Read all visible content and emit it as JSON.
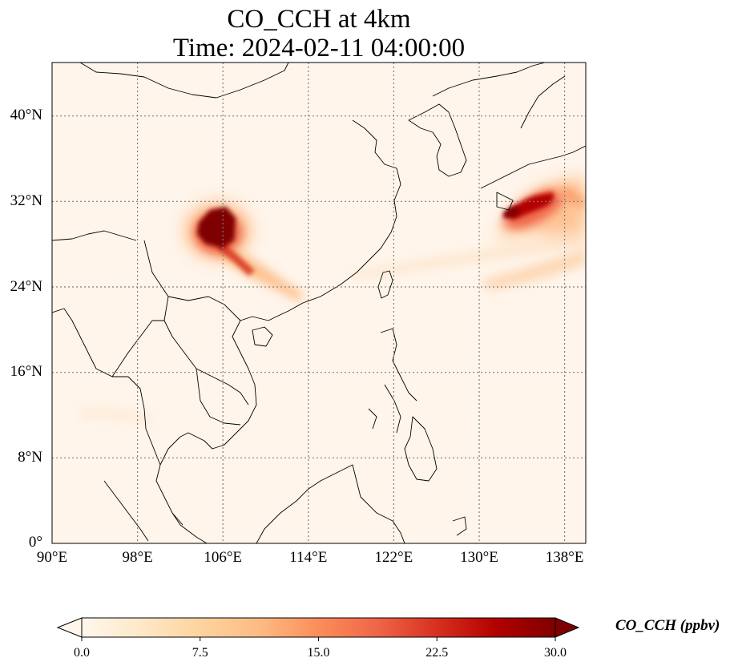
{
  "title": {
    "line1": "CO_CCH at 4km",
    "line2": "Time: 2024-02-11 04:00:00"
  },
  "map": {
    "lon_range": [
      90,
      140
    ],
    "lat_range": [
      0,
      45
    ],
    "lon_ticks": [
      {
        "value": 90,
        "label": "90°E"
      },
      {
        "value": 98,
        "label": "98°E"
      },
      {
        "value": 106,
        "label": "106°E"
      },
      {
        "value": 114,
        "label": "114°E"
      },
      {
        "value": 122,
        "label": "122°E"
      },
      {
        "value": 130,
        "label": "130°E"
      },
      {
        "value": 138,
        "label": "138°E"
      }
    ],
    "lat_ticks": [
      {
        "value": 0,
        "label": "0°"
      },
      {
        "value": 8,
        "label": "8°N"
      },
      {
        "value": 16,
        "label": "16°N"
      },
      {
        "value": 24,
        "label": "24°N"
      },
      {
        "value": 32,
        "label": "32°N"
      },
      {
        "value": 40,
        "label": "40°N"
      }
    ],
    "gridlines": "dotted",
    "background_color": "#fff5eb",
    "coastline_color": "#000000"
  },
  "colorbar": {
    "label": "CO_CCH (ppbv)",
    "range": [
      0,
      30
    ],
    "ticks": [
      "0.0",
      "7.5",
      "15.0",
      "22.5",
      "30.0"
    ],
    "extend": "both",
    "colormap": "OrRd",
    "colors": [
      "#fff7ec",
      "#fee8c8",
      "#fdd49e",
      "#fdbb84",
      "#fc8d59",
      "#ef6548",
      "#d7301f",
      "#b30000",
      "#7f0000"
    ]
  },
  "plumes": [
    {
      "name": "sichuan-plume",
      "center_lon": 105.5,
      "center_lat": 29.5,
      "peak_ppbv": 30
    },
    {
      "name": "japan-plume",
      "center_lon": 133.5,
      "center_lat": 31.0,
      "peak_ppbv": 30
    }
  ]
}
